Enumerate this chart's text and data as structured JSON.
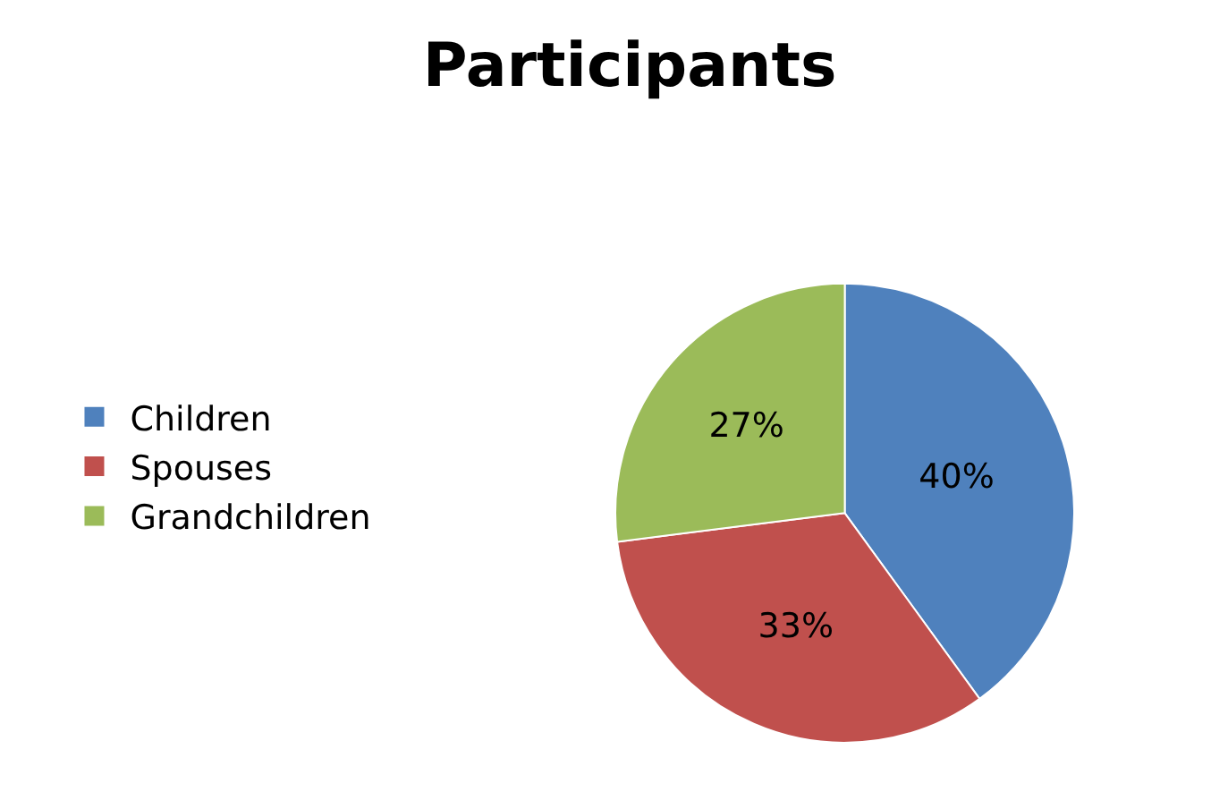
{
  "chart_data": {
    "type": "pie",
    "title": "Participants",
    "categories": [
      "Children",
      "Spouses",
      "Grandchildren"
    ],
    "values": [
      40,
      33,
      27
    ],
    "colors": [
      "#4f81bd",
      "#c0504d",
      "#9bbb59"
    ],
    "value_labels": [
      "40%",
      "33%",
      "27%"
    ],
    "legend": "left"
  }
}
